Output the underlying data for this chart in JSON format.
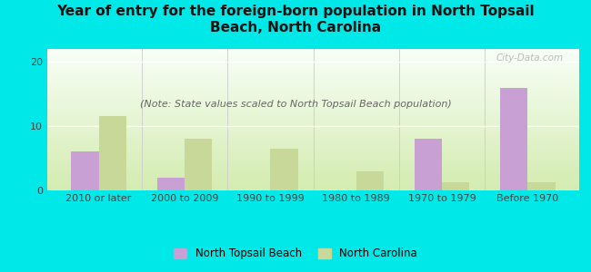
{
  "title": "Year of entry for the foreign-born population in North Topsail\nBeach, North Carolina",
  "subtitle": "(Note: State values scaled to North Topsail Beach population)",
  "categories": [
    "2010 or later",
    "2000 to 2009",
    "1990 to 1999",
    "1980 to 1989",
    "1970 to 1979",
    "Before 1970"
  ],
  "north_topsail": [
    6,
    2,
    0,
    0,
    8,
    16
  ],
  "north_carolina": [
    11.5,
    8,
    6.5,
    3,
    1.2,
    1.2
  ],
  "bar_color_ntb": "#c8a0d4",
  "bar_color_nc": "#c8d898",
  "background_color": "#00e8e8",
  "ylim": [
    0,
    22
  ],
  "yticks": [
    0,
    10,
    20
  ],
  "watermark": "City-Data.com",
  "legend_ntb": "North Topsail Beach",
  "legend_nc": "North Carolina",
  "title_fontsize": 11,
  "subtitle_fontsize": 8,
  "tick_fontsize": 8
}
